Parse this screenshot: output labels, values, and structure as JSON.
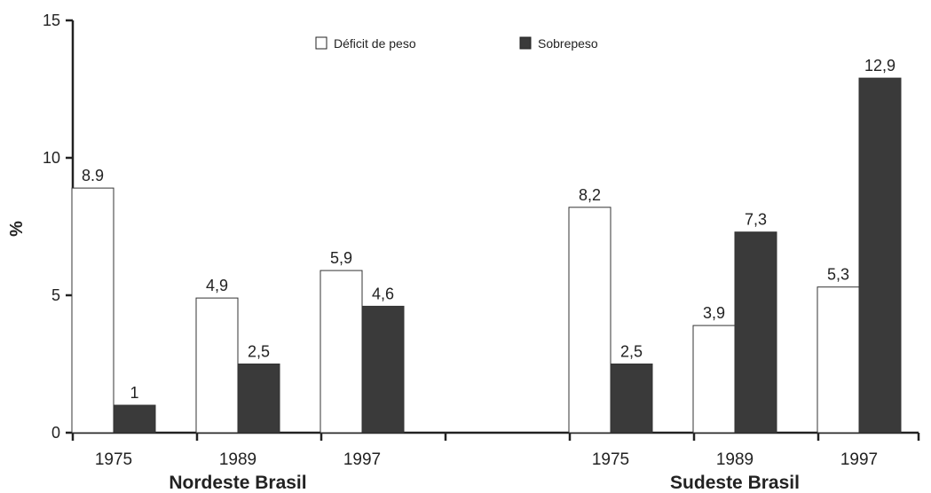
{
  "chart_data": {
    "type": "bar",
    "ylabel": "%",
    "ylim": [
      0,
      15
    ],
    "yticks": [
      0,
      5,
      10,
      15
    ],
    "grid": false,
    "legend_position": "top-center",
    "groups": [
      {
        "name": "Nordeste Brasil",
        "categories": [
          "1975",
          "1989",
          "1997"
        ],
        "series": [
          {
            "name": "Déficit de peso",
            "values": [
              8.9,
              4.9,
              5.9
            ],
            "labels": [
              "8.9",
              "4,9",
              "5,9"
            ]
          },
          {
            "name": "Sobrepeso",
            "values": [
              1,
              2.5,
              4.6
            ],
            "labels": [
              "1",
              "2,5",
              "4,6"
            ]
          }
        ]
      },
      {
        "name": "Sudeste Brasil",
        "categories": [
          "1975",
          "1989",
          "1997"
        ],
        "series": [
          {
            "name": "Déficit de peso",
            "values": [
              8.2,
              3.9,
              5.3
            ],
            "labels": [
              "8,2",
              "3,9",
              "5,3"
            ]
          },
          {
            "name": "Sobrepeso",
            "values": [
              2.5,
              7.3,
              12.9
            ],
            "labels": [
              "2,5",
              "7,3",
              "12,9"
            ]
          }
        ]
      }
    ],
    "legend": [
      {
        "name": "Déficit de peso",
        "color": "#ffffff"
      },
      {
        "name": "Sobrepeso",
        "color": "#3a3a3a"
      }
    ],
    "colors": {
      "deficit_fill": "#ffffff",
      "sobrepeso_fill": "#3a3a3a",
      "stroke": "#333333"
    }
  }
}
